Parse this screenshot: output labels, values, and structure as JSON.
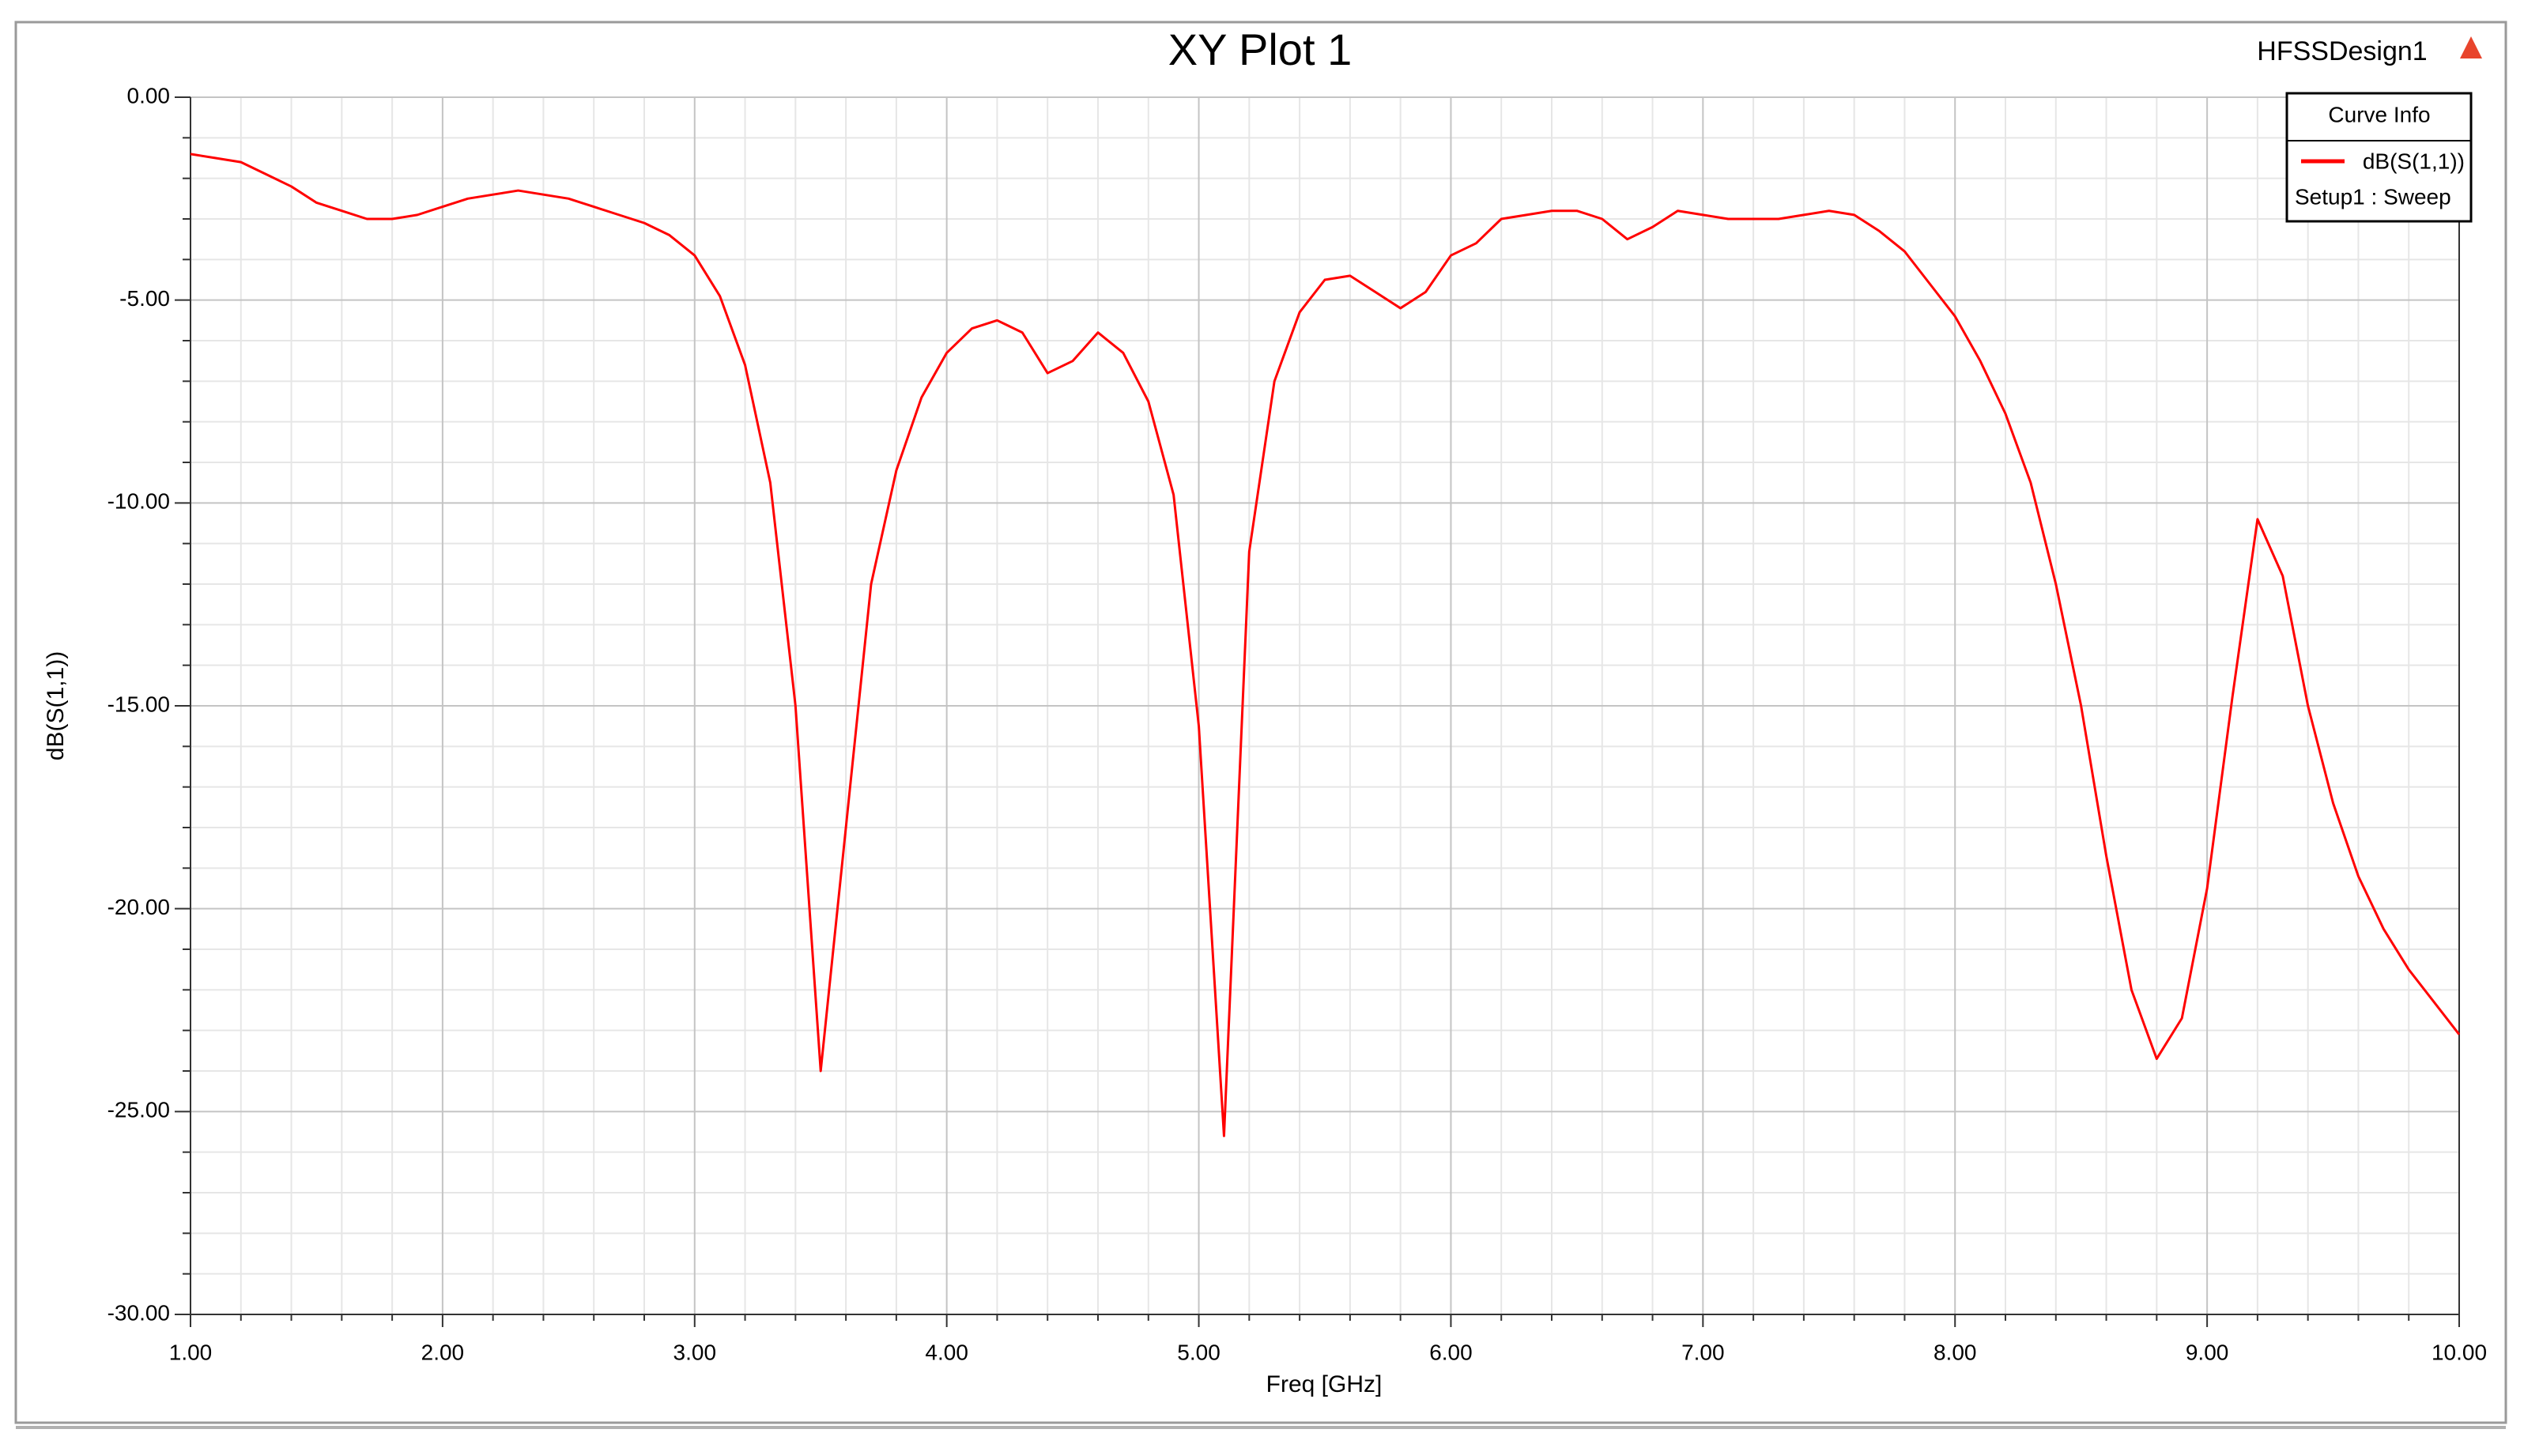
{
  "design_name": "HFSSDesign1",
  "chart_data": {
    "type": "line",
    "title": "XY Plot 1",
    "xlabel": "Freq [GHz]",
    "ylabel": "dB(S(1,1))",
    "legend_title": "Curve Info",
    "x": [
      1.0,
      1.1,
      1.2,
      1.3,
      1.4,
      1.5,
      1.6,
      1.7,
      1.8,
      1.9,
      2.0,
      2.1,
      2.2,
      2.3,
      2.4,
      2.5,
      2.6,
      2.7,
      2.8,
      2.9,
      3.0,
      3.1,
      3.2,
      3.3,
      3.4,
      3.5,
      3.6,
      3.7,
      3.8,
      3.9,
      4.0,
      4.1,
      4.2,
      4.3,
      4.4,
      4.5,
      4.6,
      4.7,
      4.8,
      4.9,
      5.0,
      5.1,
      5.2,
      5.3,
      5.4,
      5.5,
      5.6,
      5.7,
      5.8,
      5.9,
      6.0,
      6.1,
      6.2,
      6.3,
      6.4,
      6.5,
      6.6,
      6.7,
      6.8,
      6.9,
      7.0,
      7.1,
      7.2,
      7.3,
      7.4,
      7.5,
      7.6,
      7.7,
      7.8,
      7.9,
      8.0,
      8.1,
      8.2,
      8.3,
      8.4,
      8.5,
      8.6,
      8.7,
      8.8,
      8.9,
      9.0,
      9.1,
      9.2,
      9.3,
      9.4,
      9.5,
      9.6,
      9.7,
      9.8,
      9.9,
      10.0
    ],
    "series": [
      {
        "name": "dB(S(1,1))",
        "setup": "Setup1 : Sweep",
        "color": "#ff0000",
        "values": [
          -1.4,
          -1.5,
          -1.6,
          -1.9,
          -2.2,
          -2.6,
          -2.8,
          -3.0,
          -3.0,
          -2.9,
          -2.7,
          -2.5,
          -2.4,
          -2.3,
          -2.4,
          -2.5,
          -2.7,
          -2.9,
          -3.1,
          -3.4,
          -3.9,
          -4.9,
          -6.6,
          -9.5,
          -15.0,
          -24.0,
          -18.0,
          -12.0,
          -9.2,
          -7.4,
          -6.3,
          -5.7,
          -5.5,
          -5.8,
          -6.8,
          -6.5,
          -5.8,
          -6.3,
          -7.5,
          -9.8,
          -15.5,
          -25.6,
          -11.2,
          -7.0,
          -5.3,
          -4.5,
          -4.4,
          -4.8,
          -5.2,
          -4.8,
          -3.9,
          -3.6,
          -3.0,
          -2.9,
          -2.8,
          -2.8,
          -3.0,
          -3.5,
          -3.2,
          -2.8,
          -2.9,
          -3.0,
          -3.0,
          -3.0,
          -2.9,
          -2.8,
          -2.9,
          -3.3,
          -3.8,
          -4.6,
          -5.4,
          -6.5,
          -7.8,
          -9.5,
          -12.0,
          -15.0,
          -18.7,
          -22.0,
          -23.7,
          -22.7,
          -19.5,
          -14.8,
          -10.4,
          -11.8,
          -15.0,
          -17.4,
          -19.2,
          -20.5,
          -21.5,
          -22.3,
          -23.1
        ]
      }
    ],
    "xlim": [
      1,
      10
    ],
    "ylim": [
      -30,
      0
    ],
    "xticks": [
      {
        "value": 1,
        "label": "1.00"
      },
      {
        "value": 2,
        "label": "2.00"
      },
      {
        "value": 3,
        "label": "3.00"
      },
      {
        "value": 4,
        "label": "4.00"
      },
      {
        "value": 5,
        "label": "5.00"
      },
      {
        "value": 6,
        "label": "6.00"
      },
      {
        "value": 7,
        "label": "7.00"
      },
      {
        "value": 8,
        "label": "8.00"
      },
      {
        "value": 9,
        "label": "9.00"
      },
      {
        "value": 10,
        "label": "10.00"
      }
    ],
    "yticks": [
      {
        "value": 0,
        "label": "0.00"
      },
      {
        "value": -5,
        "label": "-5.00"
      },
      {
        "value": -10,
        "label": "-10.00"
      },
      {
        "value": -15,
        "label": "-15.00"
      },
      {
        "value": -20,
        "label": "-20.00"
      },
      {
        "value": -25,
        "label": "-25.00"
      },
      {
        "value": -30,
        "label": "-30.00"
      }
    ],
    "xminorticks": [
      1.2,
      1.4,
      1.6,
      1.8,
      2.2,
      2.4,
      2.6,
      2.8,
      3.2,
      3.4,
      3.6,
      3.8,
      4.2,
      4.4,
      4.6,
      4.8,
      5.2,
      5.4,
      5.6,
      5.8,
      6.2,
      6.4,
      6.6,
      6.8,
      7.2,
      7.4,
      7.6,
      7.8,
      8.2,
      8.4,
      8.6,
      8.8,
      9.2,
      9.4,
      9.6,
      9.8
    ],
    "yminorticks": [
      -1,
      -2,
      -3,
      -4,
      -6,
      -7,
      -8,
      -9,
      -11,
      -12,
      -13,
      -14,
      -16,
      -17,
      -18,
      -19,
      -21,
      -22,
      -23,
      -24,
      -26,
      -27,
      -28,
      -29
    ],
    "grid": true
  }
}
